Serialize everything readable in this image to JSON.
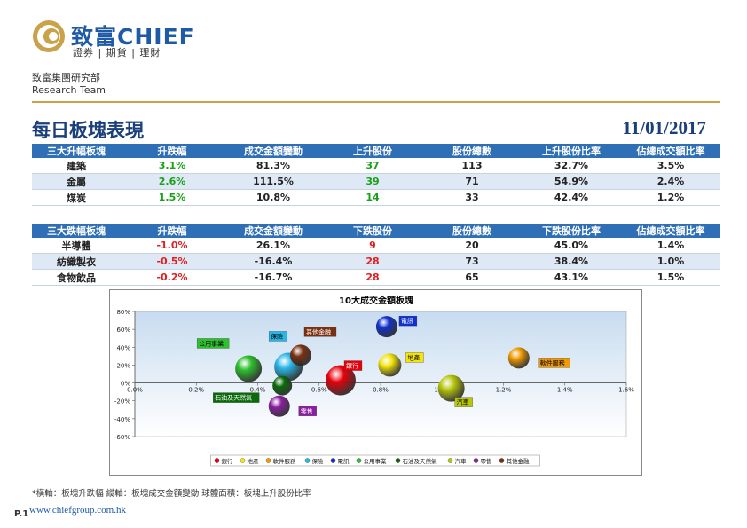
{
  "header": {
    "brand": "致富CHIEF",
    "sub": "證券 | 期貨 | 理財",
    "dept_line1": "致富集團研究部",
    "dept_line2": "Research Team"
  },
  "page_title": "每日板塊表現",
  "date": "11/01/2017",
  "gainers": {
    "headers": [
      "三大升幅板塊",
      "升跌幅",
      "成交金額變動",
      "上升股份",
      "股份總數",
      "上升股份比率",
      "佔總成交額比率"
    ],
    "rows": [
      [
        "建築",
        "3.1%",
        "81.3%",
        "37",
        "113",
        "32.7%",
        "3.5%"
      ],
      [
        "金屬",
        "2.6%",
        "111.5%",
        "39",
        "71",
        "54.9%",
        "2.4%"
      ],
      [
        "煤炭",
        "1.5%",
        "10.8%",
        "14",
        "33",
        "42.4%",
        "1.2%"
      ]
    ]
  },
  "losers": {
    "headers": [
      "三大跌幅板塊",
      "升跌幅",
      "成交金額變動",
      "下跌股份",
      "股份總數",
      "下跌股份比率",
      "佔總成交額比率"
    ],
    "rows": [
      [
        "半導體",
        "-1.0%",
        "26.1%",
        "9",
        "20",
        "45.0%",
        "1.4%"
      ],
      [
        "紡織製衣",
        "-0.5%",
        "-16.4%",
        "28",
        "73",
        "38.4%",
        "1.0%"
      ],
      [
        "食物飲品",
        "-0.2%",
        "-16.7%",
        "28",
        "65",
        "43.1%",
        "1.5%"
      ]
    ]
  },
  "chart_data": {
    "type": "scatter",
    "title": "10大成交金額板塊",
    "xlim": [
      0,
      1.6
    ],
    "ylim": [
      -60,
      80
    ],
    "x_ticks": [
      "0.0%",
      "0.2%",
      "0.4%",
      "0.6%",
      "0.8%",
      "1.0%",
      "1.2%",
      "1.4%",
      "1.6%"
    ],
    "y_ticks": [
      "80%",
      "60%",
      "40%",
      "20%",
      "0%",
      "-20%",
      "-40%",
      "-60%"
    ],
    "grid": false,
    "legend_position": "bottom",
    "series": [
      {
        "name": "銀行",
        "x": 0.67,
        "y": 3,
        "color": "#e8000b"
      },
      {
        "name": "地產",
        "x": 0.83,
        "y": 20,
        "color": "#f5e50a"
      },
      {
        "name": "軟件服務",
        "x": 1.25,
        "y": 28,
        "color": "#f39a00"
      },
      {
        "name": "保險",
        "x": 0.5,
        "y": 18,
        "color": "#29b6e8"
      },
      {
        "name": "電訊",
        "x": 0.82,
        "y": 63,
        "color": "#1030d0"
      },
      {
        "name": "公用事業",
        "x": 0.37,
        "y": 16,
        "color": "#2ec02e"
      },
      {
        "name": "石油及天然氣",
        "x": 0.48,
        "y": -3,
        "color": "#0a6a0a"
      },
      {
        "name": "汽車",
        "x": 1.03,
        "y": -6,
        "color": "#b8c70a"
      },
      {
        "name": "零售",
        "x": 0.47,
        "y": -26,
        "color": "#8a1fa0"
      },
      {
        "name": "其他金融",
        "x": 0.54,
        "y": 31,
        "color": "#7a3010"
      }
    ]
  },
  "footnote": "*橫軸：板塊升跌幅      縱軸：板塊成交金額變動      球體面積：板塊上升股份比率",
  "page_number": "P.1",
  "url": "www.chiefgroup.com.hk"
}
